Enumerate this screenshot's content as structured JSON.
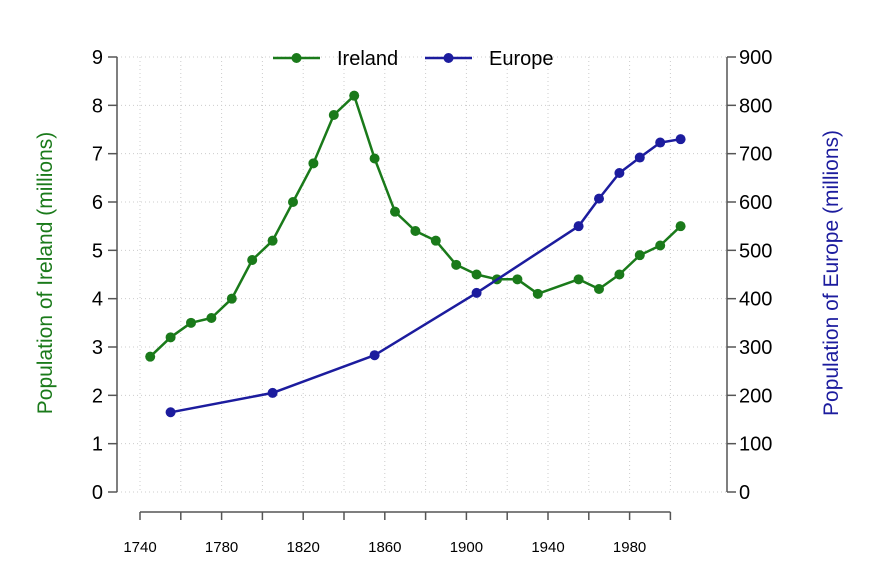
{
  "chart_data": {
    "type": "line",
    "left_axis": {
      "label": "Population of Ireland (millions)",
      "ylim": [
        0,
        9
      ],
      "ticks": [
        0,
        1,
        2,
        3,
        4,
        5,
        6,
        7,
        8,
        9
      ],
      "tick_labels": [
        "0",
        "1",
        "2",
        "3",
        "4",
        "5",
        "6",
        "7",
        "8",
        "9"
      ],
      "color": "#1a7a1a"
    },
    "right_axis": {
      "label": "Population of Europe (millions)",
      "ylim": [
        0,
        900
      ],
      "ticks": [
        0,
        100,
        200,
        300,
        400,
        500,
        600,
        700,
        800,
        900
      ],
      "tick_labels": [
        "0",
        "100",
        "200",
        "300",
        "400",
        "500",
        "600",
        "700",
        "800",
        "900"
      ],
      "color": "#1c1c9e"
    },
    "x_axis": {
      "xlim": [
        1730,
        2012
      ],
      "ticks": [
        1740,
        1760,
        1780,
        1800,
        1820,
        1840,
        1860,
        1880,
        1900,
        1920,
        1940,
        1960,
        1980,
        2000
      ],
      "tick_labels": [
        "1740",
        "",
        "1780",
        "",
        "1820",
        "",
        "1860",
        "",
        "1900",
        "",
        "1940",
        "",
        "1980",
        ""
      ]
    },
    "grid": true,
    "legend_position": "top-center",
    "series": [
      {
        "name": "Ireland",
        "axis": "left",
        "color": "#1a7a1a",
        "points": [
          [
            1745,
            2.8
          ],
          [
            1755,
            3.2
          ],
          [
            1765,
            3.5
          ],
          [
            1775,
            3.6
          ],
          [
            1785,
            4.0
          ],
          [
            1795,
            4.8
          ],
          [
            1805,
            5.2
          ],
          [
            1815,
            6.0
          ],
          [
            1825,
            6.8
          ],
          [
            1835,
            7.8
          ],
          [
            1845,
            8.2
          ],
          [
            1855,
            6.9
          ],
          [
            1865,
            5.8
          ],
          [
            1875,
            5.4
          ],
          [
            1885,
            5.2
          ],
          [
            1895,
            4.7
          ],
          [
            1905,
            4.5
          ],
          [
            1915,
            4.4
          ],
          [
            1925,
            4.4
          ],
          [
            1935,
            4.1
          ],
          [
            1955,
            4.4
          ],
          [
            1965,
            4.2
          ],
          [
            1975,
            4.5
          ],
          [
            1985,
            4.9
          ],
          [
            1995,
            5.1
          ],
          [
            2005,
            5.5
          ]
        ]
      },
      {
        "name": "Europe",
        "axis": "right",
        "color": "#1c1c9e",
        "points": [
          [
            1755,
            165
          ],
          [
            1805,
            205
          ],
          [
            1855,
            283
          ],
          [
            1905,
            412
          ],
          [
            1955,
            550
          ],
          [
            1965,
            607
          ],
          [
            1975,
            660
          ],
          [
            1985,
            692
          ],
          [
            1995,
            723
          ],
          [
            2005,
            730
          ]
        ]
      }
    ]
  }
}
